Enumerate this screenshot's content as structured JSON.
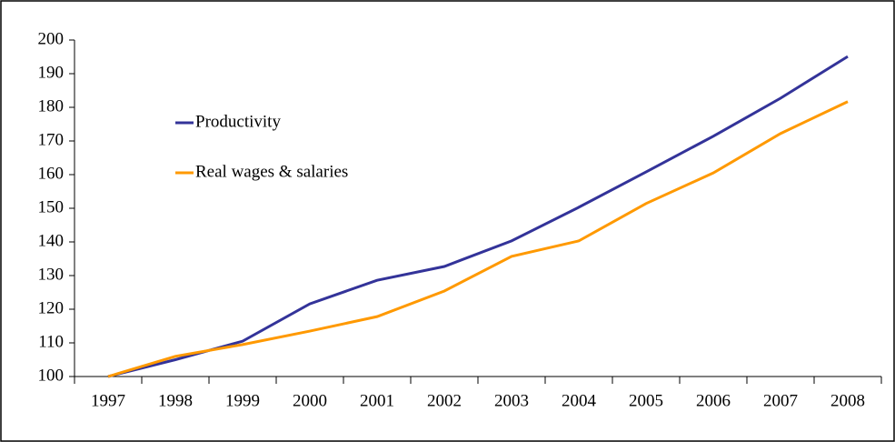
{
  "chart_data": {
    "type": "line",
    "categories": [
      "1997",
      "1998",
      "1999",
      "2000",
      "2001",
      "2002",
      "2003",
      "2004",
      "2005",
      "2006",
      "2007",
      "2008"
    ],
    "series": [
      {
        "name": "Productivity",
        "color": "#333399",
        "values": [
          100,
          105,
          110.5,
          121.6,
          128.6,
          132.7,
          140.3,
          150.3,
          160.8,
          171.4,
          182.7,
          195.1
        ]
      },
      {
        "name": "Real wages & salaries",
        "color": "#ff9900",
        "values": [
          100,
          106,
          109.5,
          113.5,
          117.8,
          125.4,
          135.7,
          140.3,
          151.4,
          160.5,
          172.2,
          181.7
        ]
      }
    ],
    "ylim": [
      100,
      200
    ],
    "yticks": [
      100,
      110,
      120,
      130,
      140,
      150,
      160,
      170,
      180,
      190,
      200
    ],
    "grid": false,
    "legend": "upper-left"
  }
}
